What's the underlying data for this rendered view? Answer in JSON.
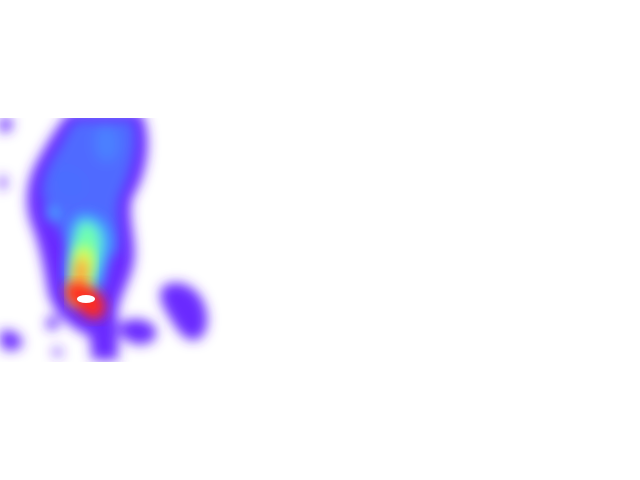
{
  "image": {
    "background": "#ffffff",
    "colormap": "rainbow",
    "color_stops": [
      "#6a2cff",
      "#4f6bff",
      "#3fb0ff",
      "#6fffb0",
      "#d7ff5a",
      "#ffa23a",
      "#ff2a1a",
      "#ffffff"
    ]
  }
}
